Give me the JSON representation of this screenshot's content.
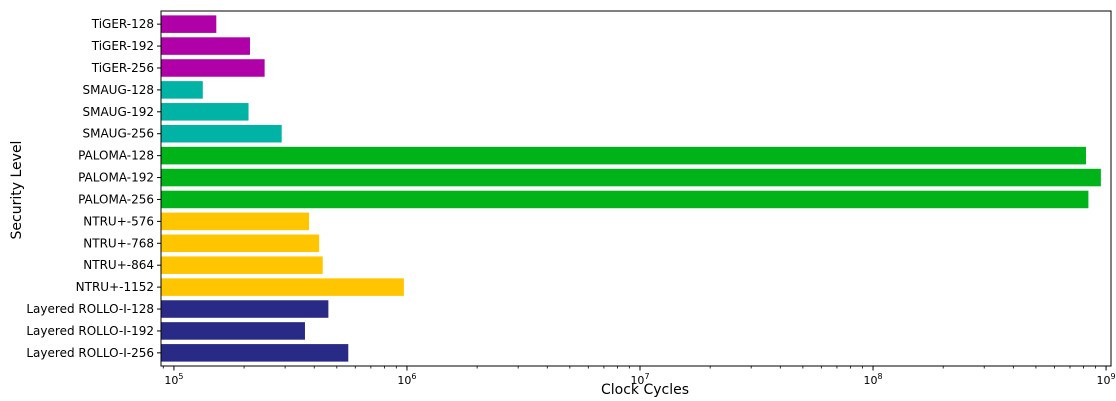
{
  "chart_data": {
    "type": "bar",
    "orientation": "horizontal",
    "xscale": "log",
    "xlabel": "Clock Cycles",
    "ylabel": "Security Level",
    "xlim": [
      88000,
      1050000000
    ],
    "xticks": [
      {
        "value": 100000,
        "base": "10",
        "exp": "5"
      },
      {
        "value": 1000000,
        "base": "10",
        "exp": "6"
      },
      {
        "value": 10000000,
        "base": "10",
        "exp": "7"
      },
      {
        "value": 100000000,
        "base": "10",
        "exp": "8"
      },
      {
        "value": 1000000000,
        "base": "10",
        "exp": "9"
      }
    ],
    "grid": false,
    "categories": [
      "TiGER-128",
      "TiGER-192",
      "TiGER-256",
      "SMAUG-128",
      "SMAUG-192",
      "SMAUG-256",
      "PALOMA-128",
      "PALOMA-192",
      "PALOMA-256",
      "NTRU+-576",
      "NTRU+-768",
      "NTRU+-864",
      "NTRU+-1152",
      "Layered ROLLO-I-128",
      "Layered ROLLO-I-192",
      "Layered ROLLO-I-256"
    ],
    "values": [
      152000,
      212000,
      245000,
      133000,
      209000,
      290000,
      820000000,
      950000000,
      840000000,
      380000,
      420000,
      435000,
      970000,
      460000,
      365000,
      560000
    ],
    "colors": [
      "#b000a8",
      "#b000a8",
      "#b000a8",
      "#00b3a4",
      "#00b3a4",
      "#00b3a4",
      "#00b319",
      "#00b319",
      "#00b319",
      "#ffc600",
      "#ffc600",
      "#ffc600",
      "#ffc600",
      "#282a85",
      "#282a85",
      "#282a85"
    ]
  }
}
